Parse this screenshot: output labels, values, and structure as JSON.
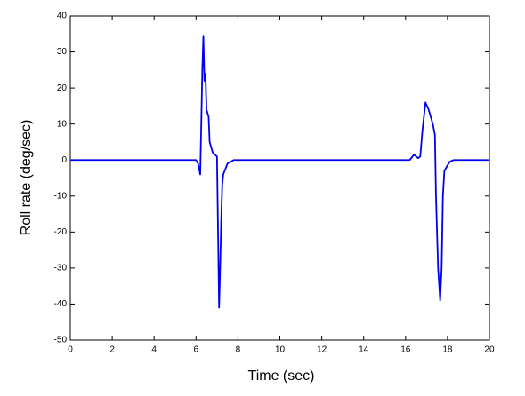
{
  "chart_data": {
    "type": "line",
    "xlabel": "Time (sec)",
    "ylabel": "Roll rate (deg/sec)",
    "x": [
      0,
      6.0,
      6.1,
      6.2,
      6.25,
      6.3,
      6.35,
      6.4,
      6.45,
      6.5,
      6.6,
      6.65,
      6.8,
      6.9,
      7.0,
      7.05,
      7.1,
      7.15,
      7.2,
      7.25,
      7.3,
      7.5,
      7.8,
      16.2,
      16.4,
      16.6,
      16.7,
      16.8,
      16.95,
      17.1,
      17.3,
      17.4,
      17.45,
      17.55,
      17.65,
      17.72,
      17.78,
      17.85,
      18.1,
      18.3,
      20
    ],
    "values": [
      0,
      0,
      -1,
      -4,
      10,
      25,
      34.5,
      22,
      24,
      14,
      12,
      5,
      2,
      1.5,
      1,
      -20,
      -41,
      -30,
      -17,
      -7,
      -4,
      -1,
      0,
      0,
      1.5,
      0.5,
      1,
      8,
      16,
      14,
      10,
      7,
      -10,
      -30,
      -39,
      -30,
      -10,
      -3,
      -0.5,
      0,
      0
    ],
    "color": "#0000ee",
    "xlim": [
      0,
      20
    ],
    "xticks": [
      0,
      2,
      4,
      6,
      8,
      10,
      12,
      14,
      16,
      18,
      20
    ],
    "ylim": [
      -50,
      40
    ],
    "yticks": [
      -50,
      -40,
      -30,
      -20,
      -10,
      0,
      10,
      20,
      30,
      40
    ],
    "grid": false
  }
}
